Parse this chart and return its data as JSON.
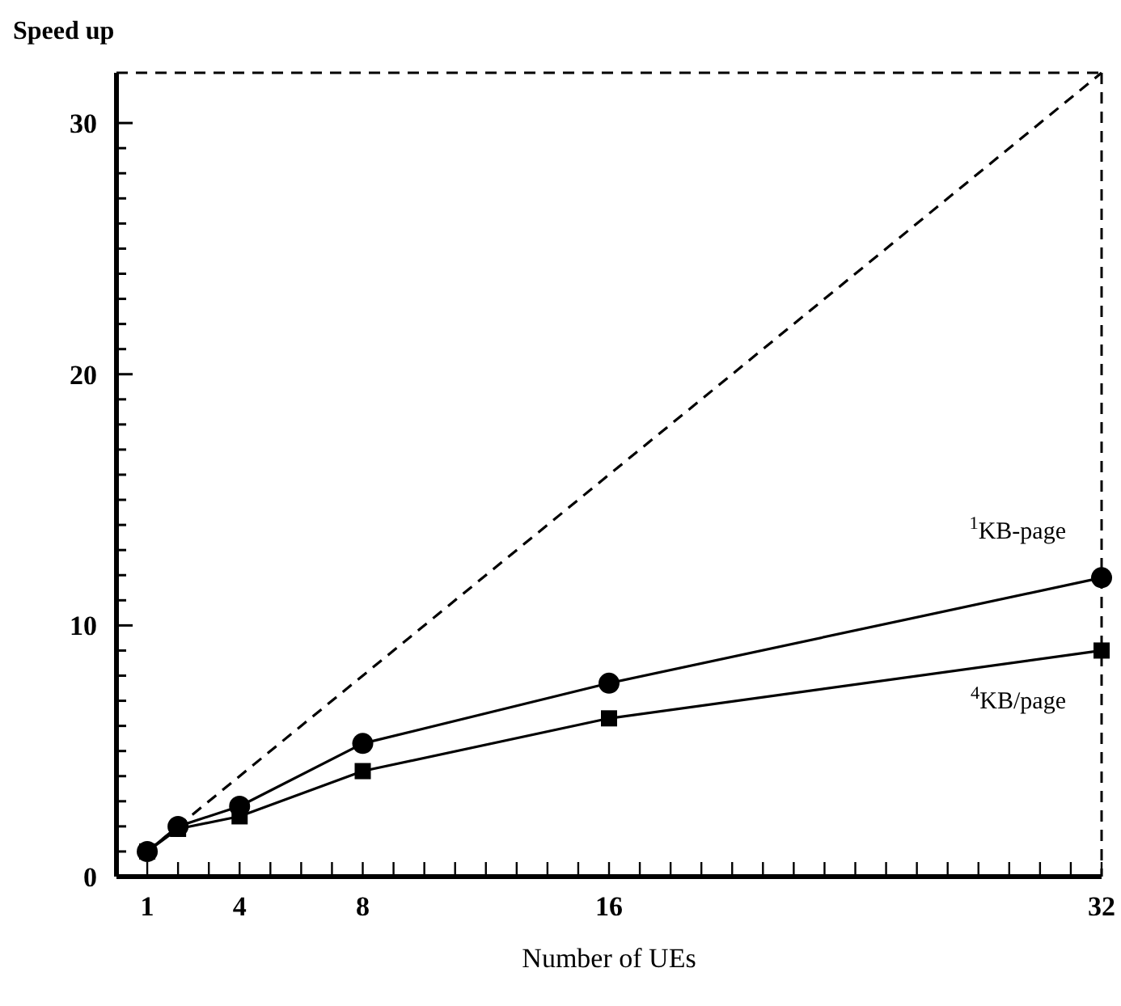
{
  "chart_data": {
    "type": "line",
    "ylabel": "Speed up",
    "xlabel": "Number of UEs",
    "xlim": [
      0,
      32
    ],
    "ylim": [
      0,
      32
    ],
    "xticks": [
      {
        "value": 0,
        "label": null
      },
      1,
      {
        "value": 2,
        "label": null
      },
      {
        "value": 3,
        "label": null
      },
      4,
      {
        "value": 5,
        "label": null
      },
      {
        "value": 6,
        "label": null
      },
      {
        "value": 7,
        "label": null
      },
      8,
      {
        "value": 9,
        "label": null
      },
      {
        "value": 10,
        "label": null
      },
      {
        "value": 11,
        "label": null
      },
      {
        "value": 12,
        "label": null
      },
      {
        "value": 13,
        "label": null
      },
      {
        "value": 14,
        "label": null
      },
      {
        "value": 15,
        "label": null
      },
      16,
      {
        "value": 17,
        "label": null
      },
      {
        "value": 18,
        "label": null
      },
      {
        "value": 19,
        "label": null
      },
      {
        "value": 20,
        "label": null
      },
      {
        "value": 21,
        "label": null
      },
      {
        "value": 22,
        "label": null
      },
      {
        "value": 23,
        "label": null
      },
      {
        "value": 24,
        "label": null
      },
      {
        "value": 25,
        "label": null
      },
      {
        "value": 26,
        "label": null
      },
      {
        "value": 27,
        "label": null
      },
      {
        "value": 28,
        "label": null
      },
      {
        "value": 29,
        "label": null
      },
      {
        "value": 30,
        "label": null
      },
      {
        "value": 31,
        "label": null
      },
      32
    ],
    "yticks": [
      0,
      {
        "value": 1,
        "label": null
      },
      {
        "value": 2,
        "label": null
      },
      {
        "value": 3,
        "label": null
      },
      {
        "value": 4,
        "label": null
      },
      {
        "value": 5,
        "label": null
      },
      {
        "value": 6,
        "label": null
      },
      {
        "value": 7,
        "label": null
      },
      {
        "value": 8,
        "label": null
      },
      {
        "value": 9,
        "label": null
      },
      10,
      {
        "value": 11,
        "label": null
      },
      {
        "value": 12,
        "label": null
      },
      {
        "value": 13,
        "label": null
      },
      {
        "value": 14,
        "label": null
      },
      {
        "value": 15,
        "label": null
      },
      {
        "value": 16,
        "label": null
      },
      {
        "value": 17,
        "label": null
      },
      {
        "value": 18,
        "label": null
      },
      {
        "value": 19,
        "label": null
      },
      20,
      {
        "value": 21,
        "label": null
      },
      {
        "value": 22,
        "label": null
      },
      {
        "value": 23,
        "label": null
      },
      {
        "value": 24,
        "label": null
      },
      {
        "value": 25,
        "label": null
      },
      {
        "value": 26,
        "label": null
      },
      {
        "value": 27,
        "label": null
      },
      {
        "value": 28,
        "label": null
      },
      {
        "value": 29,
        "label": null
      },
      30
    ],
    "grid": false,
    "series": [
      {
        "name": "$^{1}$KB-page",
        "color": "#000000",
        "x": [
          1,
          2,
          4,
          8,
          16,
          32
        ],
        "values": [
          1,
          2,
          2.8,
          5.3,
          7.7,
          11.9
        ],
        "line_style": "solid",
        "marker": "circle"
      },
      {
        "name": "$^{4}$KB/page",
        "color": "#000000",
        "x": [
          1,
          2,
          4,
          8,
          16,
          32
        ],
        "values": [
          1,
          1.9,
          2.4,
          4.2,
          6.3,
          9.0
        ],
        "line_style": "solid",
        "marker": "square"
      },
      {
        "color": "#000000",
        "x": [
          1,
          32
        ],
        "values": [
          1,
          32
        ],
        "line_style": "dashed"
      }
    ]
  }
}
